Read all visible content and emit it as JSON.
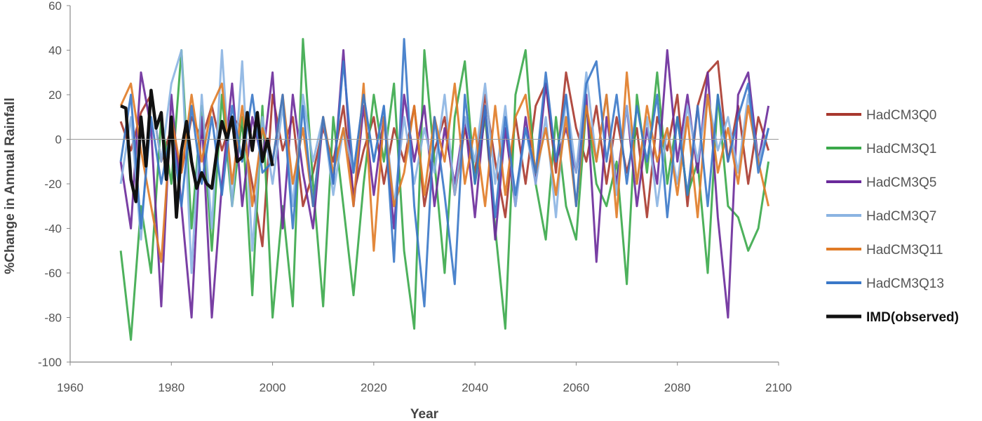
{
  "chart_data": {
    "type": "line",
    "title": "",
    "xlabel": "Year",
    "ylabel": "%Change in Annual Rainfall",
    "xlim": [
      1960,
      2100
    ],
    "ylim": [
      -100,
      60
    ],
    "xticks": [
      1960,
      1980,
      2000,
      2020,
      2040,
      2060,
      2080,
      2100
    ],
    "yticks": [
      -100,
      -80,
      -60,
      -40,
      -20,
      0,
      20,
      40,
      60
    ],
    "grid": false,
    "legend_position": "right",
    "series": [
      {
        "name": "HadCM3Q0",
        "color": "#a8382e",
        "x": [
          1970,
          1972,
          1974,
          1976,
          1978,
          1980,
          1982,
          1984,
          1986,
          1988,
          1990,
          1992,
          1994,
          1996,
          1998,
          2000,
          2002,
          2004,
          2006,
          2008,
          2010,
          2012,
          2014,
          2016,
          2018,
          2020,
          2022,
          2024,
          2026,
          2028,
          2030,
          2032,
          2034,
          2036,
          2038,
          2040,
          2042,
          2044,
          2046,
          2048,
          2050,
          2052,
          2054,
          2056,
          2058,
          2060,
          2062,
          2064,
          2066,
          2068,
          2070,
          2072,
          2074,
          2076,
          2078,
          2080,
          2082,
          2084,
          2086,
          2088,
          2090,
          2092,
          2094,
          2096,
          2098
        ],
        "y": [
          8,
          -5,
          12,
          20,
          -10,
          5,
          -15,
          10,
          0,
          15,
          -5,
          10,
          5,
          -20,
          -48,
          20,
          -5,
          10,
          -30,
          -15,
          5,
          -10,
          15,
          -25,
          -5,
          10,
          -20,
          5,
          -10,
          15,
          -30,
          -5,
          10,
          -25,
          5,
          -15,
          20,
          -10,
          -35,
          10,
          -20,
          15,
          25,
          -15,
          30,
          5,
          -10,
          15,
          -20,
          10,
          -15,
          5,
          -35,
          10,
          -5,
          20,
          -30,
          15,
          30,
          35,
          -10,
          15,
          -20,
          10,
          -5
        ]
      },
      {
        "name": "HadCM3Q1",
        "color": "#3aa84a",
        "x": [
          1970,
          1972,
          1974,
          1976,
          1978,
          1980,
          1982,
          1984,
          1986,
          1988,
          1990,
          1992,
          1994,
          1996,
          1998,
          2000,
          2002,
          2004,
          2006,
          2008,
          2010,
          2012,
          2014,
          2016,
          2018,
          2020,
          2022,
          2024,
          2026,
          2028,
          2030,
          2032,
          2034,
          2036,
          2038,
          2040,
          2042,
          2044,
          2046,
          2048,
          2050,
          2052,
          2054,
          2056,
          2058,
          2060,
          2062,
          2064,
          2066,
          2068,
          2070,
          2072,
          2074,
          2076,
          2078,
          2080,
          2082,
          2084,
          2086,
          2088,
          2090,
          2092,
          2094,
          2096,
          2098
        ],
        "y": [
          -50,
          -90,
          -30,
          -60,
          10,
          -20,
          40,
          -40,
          15,
          -50,
          20,
          -30,
          10,
          -70,
          15,
          -80,
          -30,
          -75,
          45,
          -20,
          -75,
          10,
          -30,
          -70,
          -20,
          20,
          -10,
          25,
          -50,
          -85,
          40,
          -10,
          -60,
          10,
          35,
          -20,
          10,
          -40,
          -85,
          20,
          40,
          -20,
          -45,
          10,
          -30,
          -45,
          15,
          -20,
          -30,
          -10,
          -65,
          20,
          -15,
          30,
          -20,
          10,
          -25,
          -10,
          -60,
          20,
          -30,
          -35,
          -50,
          -40,
          -10
        ]
      },
      {
        "name": "HadCM3Q5",
        "color": "#6a2a9a",
        "x": [
          1970,
          1972,
          1974,
          1976,
          1978,
          1980,
          1982,
          1984,
          1986,
          1988,
          1990,
          1992,
          1994,
          1996,
          1998,
          2000,
          2002,
          2004,
          2006,
          2008,
          2010,
          2012,
          2014,
          2016,
          2018,
          2020,
          2022,
          2024,
          2026,
          2028,
          2030,
          2032,
          2034,
          2036,
          2038,
          2040,
          2042,
          2044,
          2046,
          2048,
          2050,
          2052,
          2054,
          2056,
          2058,
          2060,
          2062,
          2064,
          2066,
          2068,
          2070,
          2072,
          2074,
          2076,
          2078,
          2080,
          2082,
          2084,
          2086,
          2088,
          2090,
          2092,
          2094,
          2096,
          2098
        ],
        "y": [
          -10,
          -40,
          30,
          5,
          -75,
          20,
          -30,
          -80,
          10,
          -80,
          -20,
          25,
          -30,
          10,
          -10,
          30,
          -40,
          20,
          -15,
          -40,
          10,
          -20,
          40,
          -30,
          15,
          -25,
          10,
          -40,
          20,
          -10,
          15,
          -30,
          5,
          -20,
          10,
          -35,
          15,
          -45,
          5,
          -30,
          10,
          -20,
          25,
          -10,
          5,
          -15,
          20,
          -55,
          10,
          -20,
          15,
          -30,
          5,
          -20,
          40,
          -10,
          20,
          -15,
          30,
          -35,
          -80,
          20,
          30,
          -10,
          15
        ]
      },
      {
        "name": "HadCM3Q7",
        "color": "#8bb4e2",
        "x": [
          1970,
          1972,
          1974,
          1976,
          1978,
          1980,
          1982,
          1984,
          1986,
          1988,
          1990,
          1992,
          1994,
          1996,
          1998,
          2000,
          2002,
          2004,
          2006,
          2008,
          2010,
          2012,
          2014,
          2016,
          2018,
          2020,
          2022,
          2024,
          2026,
          2028,
          2030,
          2032,
          2034,
          2036,
          2038,
          2040,
          2042,
          2044,
          2046,
          2048,
          2050,
          2052,
          2054,
          2056,
          2058,
          2060,
          2062,
          2064,
          2066,
          2068,
          2070,
          2072,
          2074,
          2076,
          2078,
          2080,
          2082,
          2084,
          2086,
          2088,
          2090,
          2092,
          2094,
          2096,
          2098
        ],
        "y": [
          -20,
          10,
          -45,
          20,
          -10,
          25,
          40,
          -60,
          20,
          -40,
          40,
          -30,
          35,
          -50,
          10,
          -20,
          15,
          -30,
          20,
          -10,
          10,
          -25,
          5,
          -15,
          20,
          -10,
          15,
          -30,
          10,
          -20,
          5,
          -15,
          20,
          -25,
          10,
          -10,
          25,
          -20,
          15,
          -30,
          5,
          -20,
          10,
          -35,
          20,
          -15,
          30,
          -10,
          20,
          -25,
          15,
          -20,
          10,
          -30,
          5,
          -20,
          15,
          -10,
          20,
          -5,
          10,
          -15,
          20,
          -10,
          5
        ]
      },
      {
        "name": "HadCM3Q11",
        "color": "#e07b26",
        "x": [
          1970,
          1972,
          1974,
          1976,
          1978,
          1980,
          1982,
          1984,
          1986,
          1988,
          1990,
          1992,
          1994,
          1996,
          1998,
          2000,
          2002,
          2004,
          2006,
          2008,
          2010,
          2012,
          2014,
          2016,
          2018,
          2020,
          2022,
          2024,
          2026,
          2028,
          2030,
          2032,
          2034,
          2036,
          2038,
          2040,
          2042,
          2044,
          2046,
          2048,
          2050,
          2052,
          2054,
          2056,
          2058,
          2060,
          2062,
          2064,
          2066,
          2068,
          2070,
          2072,
          2074,
          2076,
          2078,
          2080,
          2082,
          2084,
          2086,
          2088,
          2090,
          2092,
          2094,
          2096,
          2098
        ],
        "y": [
          15,
          25,
          -5,
          -30,
          -55,
          10,
          -15,
          20,
          -10,
          15,
          25,
          -20,
          15,
          -30,
          5,
          -10,
          20,
          -20,
          5,
          -30,
          10,
          -15,
          5,
          -30,
          25,
          -50,
          10,
          -30,
          -15,
          15,
          -25,
          10,
          -10,
          25,
          -20,
          5,
          -30,
          15,
          -25,
          10,
          20,
          -15,
          5,
          -25,
          10,
          -30,
          15,
          -10,
          20,
          -35,
          30,
          -20,
          15,
          -10,
          5,
          -25,
          10,
          -35,
          20,
          -15,
          5,
          -20,
          15,
          -10,
          -30
        ]
      },
      {
        "name": "HadCM3Q13",
        "color": "#3a78c8",
        "x": [
          1970,
          1972,
          1974,
          1976,
          1978,
          1980,
          1982,
          1984,
          1986,
          1988,
          1990,
          1992,
          1994,
          1996,
          1998,
          2000,
          2002,
          2004,
          2006,
          2008,
          2010,
          2012,
          2014,
          2016,
          2018,
          2020,
          2022,
          2024,
          2026,
          2028,
          2030,
          2032,
          2034,
          2036,
          2038,
          2040,
          2042,
          2044,
          2046,
          2048,
          2050,
          2052,
          2054,
          2056,
          2058,
          2060,
          2062,
          2064,
          2066,
          2068,
          2070,
          2072,
          2074,
          2076,
          2078,
          2080,
          2082,
          2084,
          2086,
          2088,
          2090,
          2092,
          2094,
          2096,
          2098
        ],
        "y": [
          -10,
          20,
          -40,
          10,
          -20,
          5,
          -30,
          15,
          -20,
          10,
          -25,
          15,
          -10,
          20,
          -15,
          -10,
          20,
          -40,
          15,
          -30,
          10,
          -20,
          35,
          -15,
          20,
          -10,
          15,
          -55,
          45,
          -30,
          -75,
          10,
          -25,
          -65,
          20,
          -20,
          15,
          -35,
          10,
          -25,
          5,
          -15,
          30,
          -10,
          20,
          -30,
          25,
          35,
          -10,
          20,
          -20,
          15,
          -10,
          20,
          -35,
          10,
          -25,
          15,
          -30,
          20,
          -10,
          10,
          25,
          -15,
          5
        ]
      },
      {
        "name": "IMD(observed)",
        "color": "#111111",
        "x": [
          1970,
          1971,
          1972,
          1973,
          1974,
          1975,
          1976,
          1977,
          1978,
          1979,
          1980,
          1981,
          1982,
          1983,
          1984,
          1985,
          1986,
          1987,
          1988,
          1989,
          1990,
          1991,
          1992,
          1993,
          1994,
          1995,
          1996,
          1997,
          1998,
          1999,
          2000
        ],
        "y": [
          15,
          14,
          -18,
          -28,
          10,
          -12,
          22,
          5,
          12,
          -18,
          10,
          -35,
          -5,
          8,
          -10,
          -22,
          -15,
          -20,
          -22,
          -5,
          8,
          0,
          10,
          -10,
          -8,
          12,
          -5,
          12,
          -10,
          0,
          -12
        ]
      }
    ]
  }
}
